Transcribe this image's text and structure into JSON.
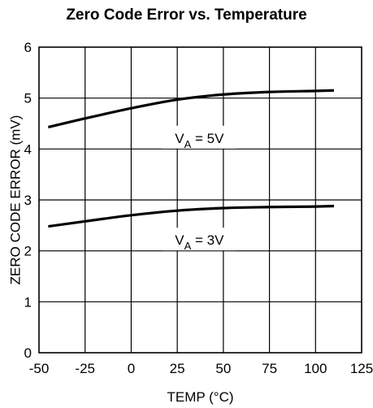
{
  "chart_data": {
    "type": "line",
    "title": "Zero Code Error vs. Temperature",
    "xlabel": "TEMP (°C)",
    "ylabel": "ZERO CODE ERROR (mV)",
    "xlim": [
      -50,
      125
    ],
    "ylim": [
      0,
      6
    ],
    "x_ticks": [
      -50,
      -25,
      0,
      25,
      50,
      75,
      100,
      125
    ],
    "y_ticks": [
      0,
      1,
      2,
      3,
      4,
      5,
      6
    ],
    "grid": true,
    "legend": "none",
    "series": [
      {
        "name": "V_A = 5V",
        "label_parts": {
          "base": "V",
          "sub": "A",
          "rest": " = 5V"
        },
        "x": [
          -45,
          -25,
          0,
          25,
          50,
          75,
          100,
          110
        ],
        "y": [
          4.43,
          4.6,
          4.8,
          4.97,
          5.07,
          5.12,
          5.14,
          5.15
        ]
      },
      {
        "name": "V_A = 3V",
        "label_parts": {
          "base": "V",
          "sub": "A",
          "rest": " = 3V"
        },
        "x": [
          -45,
          -25,
          0,
          25,
          50,
          75,
          100,
          110
        ],
        "y": [
          2.48,
          2.58,
          2.7,
          2.79,
          2.84,
          2.86,
          2.87,
          2.88
        ]
      }
    ]
  }
}
